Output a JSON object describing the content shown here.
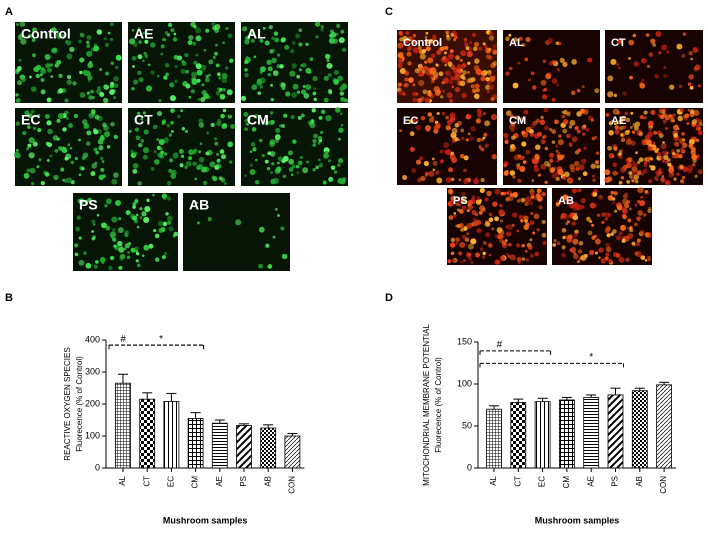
{
  "figure": {
    "panels": [
      "A",
      "B",
      "C",
      "D"
    ],
    "images_a": [
      "Control",
      "AE",
      "AL",
      "EC",
      "CT",
      "CM",
      "PS",
      "AB"
    ],
    "images_c": [
      "Control",
      "AL",
      "CT",
      "EC",
      "CM",
      "AE",
      "PS",
      "AB"
    ]
  },
  "chart_data": [
    {
      "type": "bar",
      "y_label_lines": [
        "REACTIVE OXYGEN SPECIES",
        "Fluorecence (% of Control)"
      ],
      "x_label": "Mushroom samples",
      "categories": [
        "AL",
        "CT",
        "EC",
        "CM",
        "AE",
        "PS",
        "AB",
        "CON"
      ],
      "values": [
        265,
        215,
        208,
        155,
        140,
        133,
        125,
        100
      ],
      "errors": [
        28,
        20,
        25,
        18,
        10,
        5,
        10,
        8
      ],
      "ylim": [
        0,
        400
      ],
      "yticks": [
        0,
        100,
        200,
        300,
        400
      ],
      "annotations": [
        "#",
        "*"
      ],
      "color": "#000000"
    },
    {
      "type": "bar",
      "y_label_lines": [
        "MITOCHONDRIAL MEMBRANE POTENTIAL",
        "Fluorecence (% of Control)"
      ],
      "x_label": "Mushroom samples",
      "categories": [
        "AL",
        "CT",
        "EC",
        "CM",
        "AE",
        "PS",
        "AB",
        "CON"
      ],
      "values": [
        70,
        78,
        79,
        81,
        84,
        87,
        92,
        99
      ],
      "errors": [
        4,
        4,
        4,
        3,
        3,
        8,
        3,
        3
      ],
      "ylim": [
        0,
        150
      ],
      "yticks": [
        0,
        50,
        100,
        150
      ],
      "annotations": [
        "#",
        "*"
      ],
      "color": "#000000"
    }
  ]
}
